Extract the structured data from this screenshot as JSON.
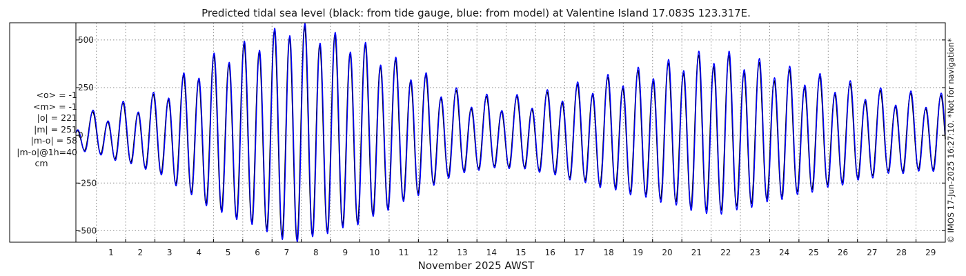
{
  "chart_data": {
    "type": "line",
    "title": "Predicted tidal sea level (black: from tide gauge, blue: from model) at Valentine Island 17.083S 123.317E.",
    "xlabel": "November 2025 AWST",
    "ylabel": "",
    "ylim": [
      -560,
      590
    ],
    "yticks": [
      500,
      250,
      0,
      -250,
      -500
    ],
    "ytick_labels": [
      "500",
      "250",
      "0",
      "-250",
      "-500"
    ],
    "xlim": [
      0.3,
      30.0
    ],
    "xticks": [
      1,
      2,
      3,
      4,
      5,
      6,
      7,
      8,
      9,
      10,
      11,
      12,
      13,
      14,
      15,
      16,
      17,
      18,
      19,
      20,
      21,
      22,
      23,
      24,
      25,
      26,
      27,
      28,
      29
    ],
    "xtick_labels": [
      "1",
      "2",
      "3",
      "4",
      "5",
      "6",
      "7",
      "8",
      "9",
      "10",
      "11",
      "12",
      "13",
      "14",
      "15",
      "16",
      "17",
      "18",
      "19",
      "20",
      "21",
      "22",
      "23",
      "24",
      "25",
      "26",
      "27",
      "28",
      "29"
    ],
    "grid": true,
    "series": [
      {
        "name": "from tide gauge",
        "color": "#000000",
        "amplitude_envelope_cm": {
          "days": [
            0.3,
            3,
            5,
            7,
            7.5,
            8,
            10,
            12,
            13,
            14,
            15,
            16,
            18,
            20,
            21,
            22,
            23,
            24,
            26,
            28,
            30
          ],
          "amplitude": [
            60,
            180,
            380,
            500,
            550,
            540,
            450,
            300,
            210,
            170,
            160,
            175,
            250,
            320,
            360,
            400,
            370,
            330,
            260,
            190,
            170
          ]
        },
        "period_days": 0.5175,
        "phase_offset_days": 0.0,
        "diurnal_inequality_cm": 38
      },
      {
        "name": "from model",
        "color": "#0000ff",
        "amplitude_envelope_cm": {
          "days": [
            0.3,
            3,
            5,
            7,
            7.5,
            8,
            10,
            12,
            13,
            14,
            15,
            16,
            18,
            20,
            21,
            22,
            23,
            24,
            26,
            28,
            30
          ],
          "amplitude": [
            66,
            188,
            390,
            512,
            565,
            552,
            462,
            312,
            222,
            180,
            168,
            184,
            262,
            336,
            376,
            420,
            390,
            348,
            274,
            202,
            180
          ]
        },
        "period_days": 0.5175,
        "phase_offset_days": 0.012,
        "diurnal_inequality_cm": 40
      }
    ],
    "stats": {
      "mean_observed": "<o> = -1",
      "mean_model": "<m> = -1",
      "abs_observed": "|o| = 221",
      "abs_model": "|m| = 251",
      "abs_diff": "|m-o| = 58",
      "abs_diff_1h": "|m-o|@1h=40",
      "unit": "cm"
    },
    "credit": "© IMOS 17-Jun-2025 16:27:10. *Not for navigation*",
    "grid_color": "#8a8a8a",
    "axis_color": "#000000"
  }
}
